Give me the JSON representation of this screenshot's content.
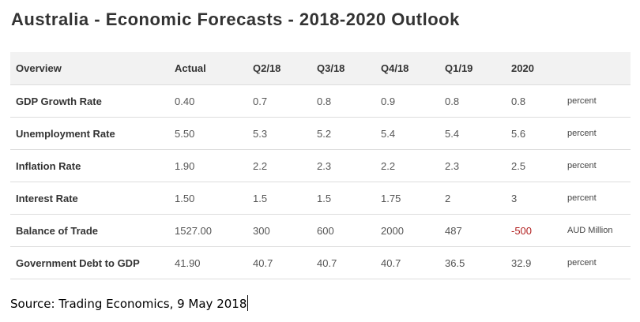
{
  "title": "Australia - Economic Forecasts - 2018-2020 Outlook",
  "table": {
    "headers": [
      "Overview",
      "Actual",
      "Q2/18",
      "Q3/18",
      "Q4/18",
      "Q1/19",
      "2020",
      ""
    ],
    "rows": [
      {
        "indicator": "GDP Growth Rate",
        "actual": "0.40",
        "q2_18": "0.7",
        "q3_18": "0.8",
        "q4_18": "0.9",
        "q1_19": "0.8",
        "y2020": "0.8",
        "unit": "percent"
      },
      {
        "indicator": "Unemployment Rate",
        "actual": "5.50",
        "q2_18": "5.3",
        "q3_18": "5.2",
        "q4_18": "5.4",
        "q1_19": "5.4",
        "y2020": "5.6",
        "unit": "percent"
      },
      {
        "indicator": "Inflation Rate",
        "actual": "1.90",
        "q2_18": "2.2",
        "q3_18": "2.3",
        "q4_18": "2.2",
        "q1_19": "2.3",
        "y2020": "2.5",
        "unit": "percent"
      },
      {
        "indicator": "Interest Rate",
        "actual": "1.50",
        "q2_18": "1.5",
        "q3_18": "1.5",
        "q4_18": "1.75",
        "q1_19": "2",
        "y2020": "3",
        "unit": "percent"
      },
      {
        "indicator": "Balance of Trade",
        "actual": "1527.00",
        "q2_18": "300",
        "q3_18": "600",
        "q4_18": "2000",
        "q1_19": "487",
        "y2020": "-500",
        "unit": "AUD Million"
      },
      {
        "indicator": "Government Debt to GDP",
        "actual": "41.90",
        "q2_18": "40.7",
        "q3_18": "40.7",
        "q4_18": "40.7",
        "q1_19": "36.5",
        "y2020": "32.9",
        "unit": "percent"
      }
    ]
  },
  "source": "Source: Trading Economics, 9 May 2018",
  "colors": {
    "header_bg": "#f2f2f2",
    "row_divider": "#dddddd",
    "negative_value": "#b22222"
  }
}
